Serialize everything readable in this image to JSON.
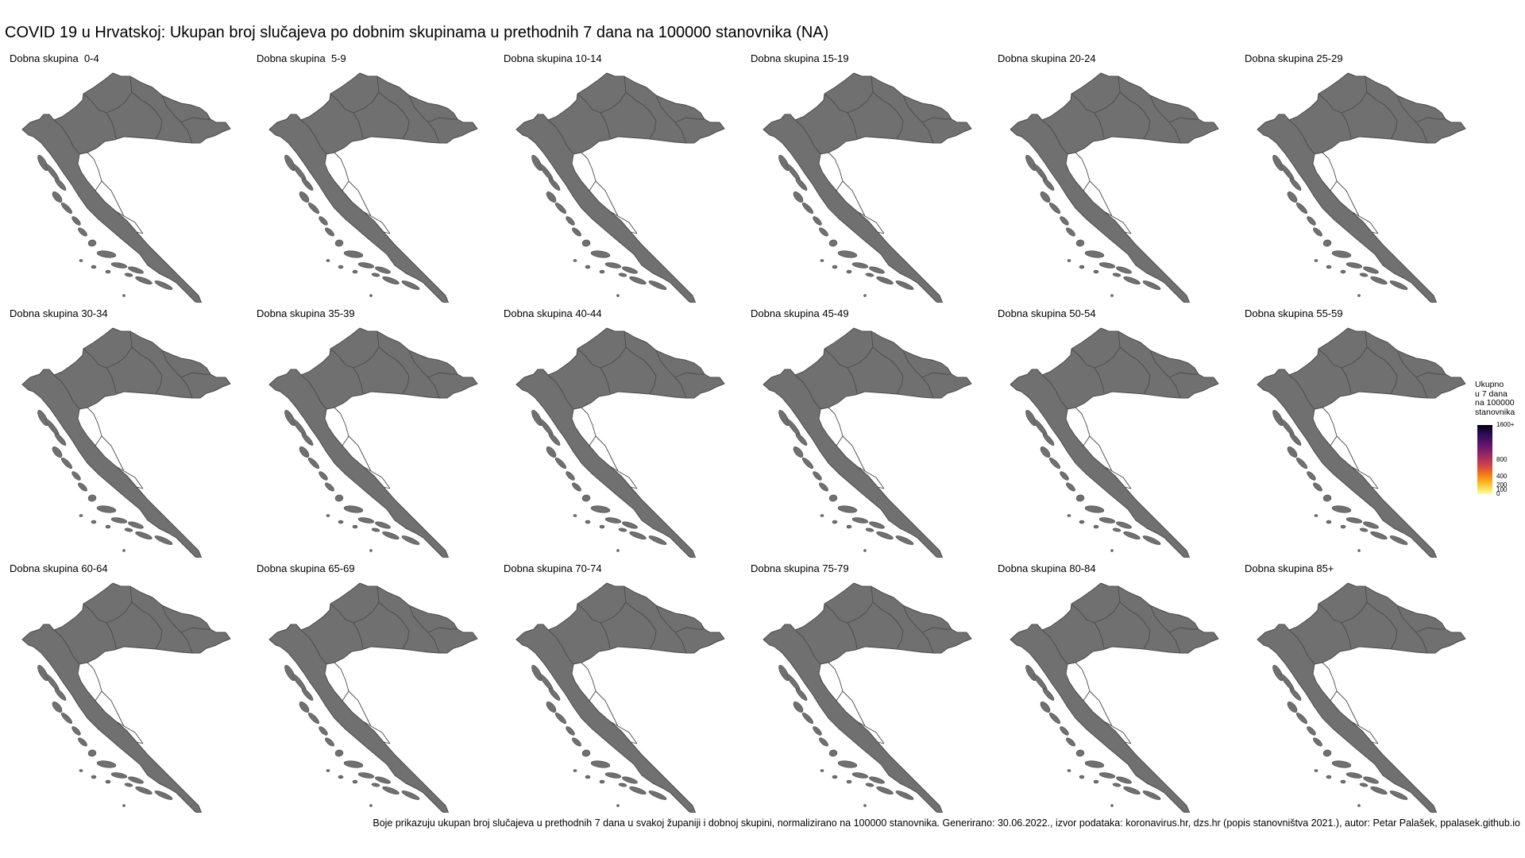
{
  "title": "COVID 19 u Hrvatskoj: Ukupan broj slučajeva po dobnim skupinama u prethodnih 7 dana na 100000 stanovnika (NA)",
  "panels": [
    {
      "label": "Dobna skupina  0-4"
    },
    {
      "label": "Dobna skupina  5-9"
    },
    {
      "label": "Dobna skupina 10-14"
    },
    {
      "label": "Dobna skupina 15-19"
    },
    {
      "label": "Dobna skupina 20-24"
    },
    {
      "label": "Dobna skupina 25-29"
    },
    {
      "label": "Dobna skupina 30-34"
    },
    {
      "label": "Dobna skupina 35-39"
    },
    {
      "label": "Dobna skupina 40-44"
    },
    {
      "label": "Dobna skupina 45-49"
    },
    {
      "label": "Dobna skupina 50-54"
    },
    {
      "label": "Dobna skupina 55-59"
    },
    {
      "label": "Dobna skupina 60-64"
    },
    {
      "label": "Dobna skupina 65-69"
    },
    {
      "label": "Dobna skupina 70-74"
    },
    {
      "label": "Dobna skupina 75-79"
    },
    {
      "label": "Dobna skupina 80-84"
    },
    {
      "label": "Dobna skupina 85+"
    }
  ],
  "legend": {
    "title_lines": [
      "Ukupno",
      "u 7 dana",
      "na 100000",
      "stanovnika"
    ],
    "ticks": [
      {
        "label": "1600+",
        "value": 1600
      },
      {
        "label": "800",
        "value": 800
      },
      {
        "label": "400",
        "value": 400
      },
      {
        "label": "200",
        "value": 200
      },
      {
        "label": "100",
        "value": 100
      },
      {
        "label": "0",
        "value": 0
      }
    ]
  },
  "caption": "Boje prikazuju ukupan broj slučajeva u prethodnih 7 dana u svakoj županiji i dobnoj skupini, normalizirano na 100000 stanovnika. Generirano: 30.06.2022., izvor podataka: koronavirus.hr, dzs.hr (popis stanovništva 2021.), autor: Petar Palašek, ppalasek.github.io",
  "colors": {
    "na_fill": "#707070",
    "border": "#4a4a4a",
    "scale_low": "#fcffa4",
    "scale_high": "#000004"
  }
}
